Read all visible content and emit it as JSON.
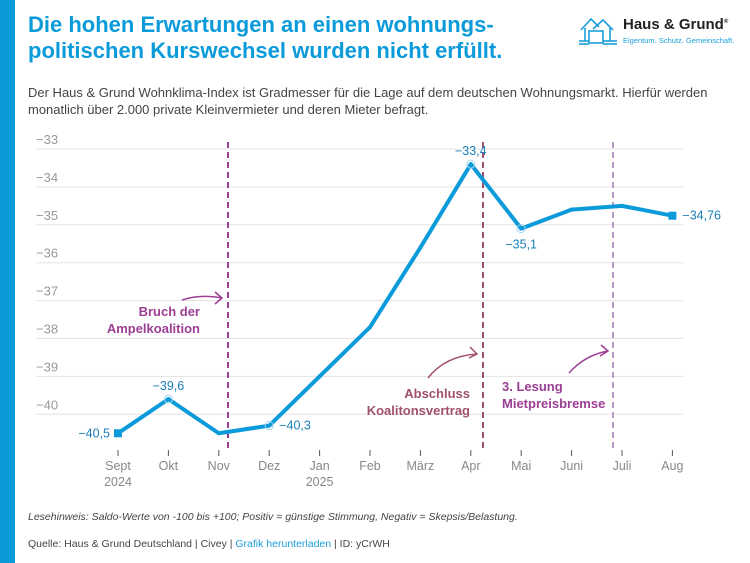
{
  "header": {
    "title": "Die hohen Erwartungen an einen wohnungs-politischen Kurswechsel wurden nicht erfüllt.",
    "title_line1": "Die hohen Erwartungen an einen wohnungs-",
    "title_line2": "politischen Kurswechsel wurden nicht erfüllt.",
    "subtitle": "Der Haus & Grund Wohnklima-Index ist Gradmesser für die Lage auf dem deutschen Wohnungsmarkt. Hierfür werden monatlich über 2.000 private Kleinvermieter und deren Mieter befragt."
  },
  "logo": {
    "name": "Haus & Grund",
    "registered": "®",
    "tagline": "Eigentum. Schutz. Gemeinschaft."
  },
  "colors": {
    "accent": "#0b9bdb",
    "line": "#0b9bdb",
    "label": "#1a7fb8",
    "annotation_purple": "#9b3e94",
    "annotation_mauve": "#a0506e",
    "annotation_light": "#b99ac4",
    "grid": "#e3e3e3",
    "axis_text": "#888888"
  },
  "chart_data": {
    "type": "line",
    "categories": [
      "Sept\n2024",
      "Okt",
      "Nov",
      "Dez",
      "Jan\n2025",
      "Feb",
      "März",
      "Apr",
      "Mai",
      "Juni",
      "Juli",
      "Aug"
    ],
    "values": [
      -40.5,
      -39.6,
      -40.5,
      -40.3,
      -39.0,
      -37.7,
      -35.6,
      -33.4,
      -35.1,
      -34.6,
      -34.5,
      -34.76
    ],
    "data_labels": [
      {
        "index": 0,
        "text": "−40,5"
      },
      {
        "index": 1,
        "text": "−39,6"
      },
      {
        "index": 3,
        "text": "−40,3"
      },
      {
        "index": 7,
        "text": "−33,4"
      },
      {
        "index": 8,
        "text": "−35,1"
      },
      {
        "index": 11,
        "text": "−34,76"
      }
    ],
    "yticks": [
      -33,
      -34,
      -35,
      -36,
      -37,
      -38,
      -39,
      -40
    ],
    "ytick_labels": [
      "−33",
      "−34",
      "−35",
      "−36",
      "−37",
      "−38",
      "−39",
      "−40"
    ],
    "ylim": [
      -41,
      -33
    ],
    "grid": true,
    "annotations": [
      {
        "text_lines": [
          "Bruch der",
          "Ampelkoalition"
        ],
        "at_month": "Nov",
        "color": "#9b3e94"
      },
      {
        "text_lines": [
          "Abschluss",
          "Koalitonsvertrag"
        ],
        "at_month": "Apr",
        "color": "#a0506e"
      },
      {
        "text_lines": [
          "3. Lesung",
          "Mietpreisbremse"
        ],
        "at_month": "Juli",
        "color": "#9b3e94"
      }
    ]
  },
  "footer": {
    "note": "Lesehinweis: Saldo-Werte von -100 bis +100; Positiv = günstige Stimmung, Negativ = Skepsis/Belastung.",
    "source_prefix": "Quelle: Haus & Grund Deutschland | Civey | ",
    "download_link": "Grafik herunterladen",
    "source_suffix": " | ID: yCrWH"
  }
}
